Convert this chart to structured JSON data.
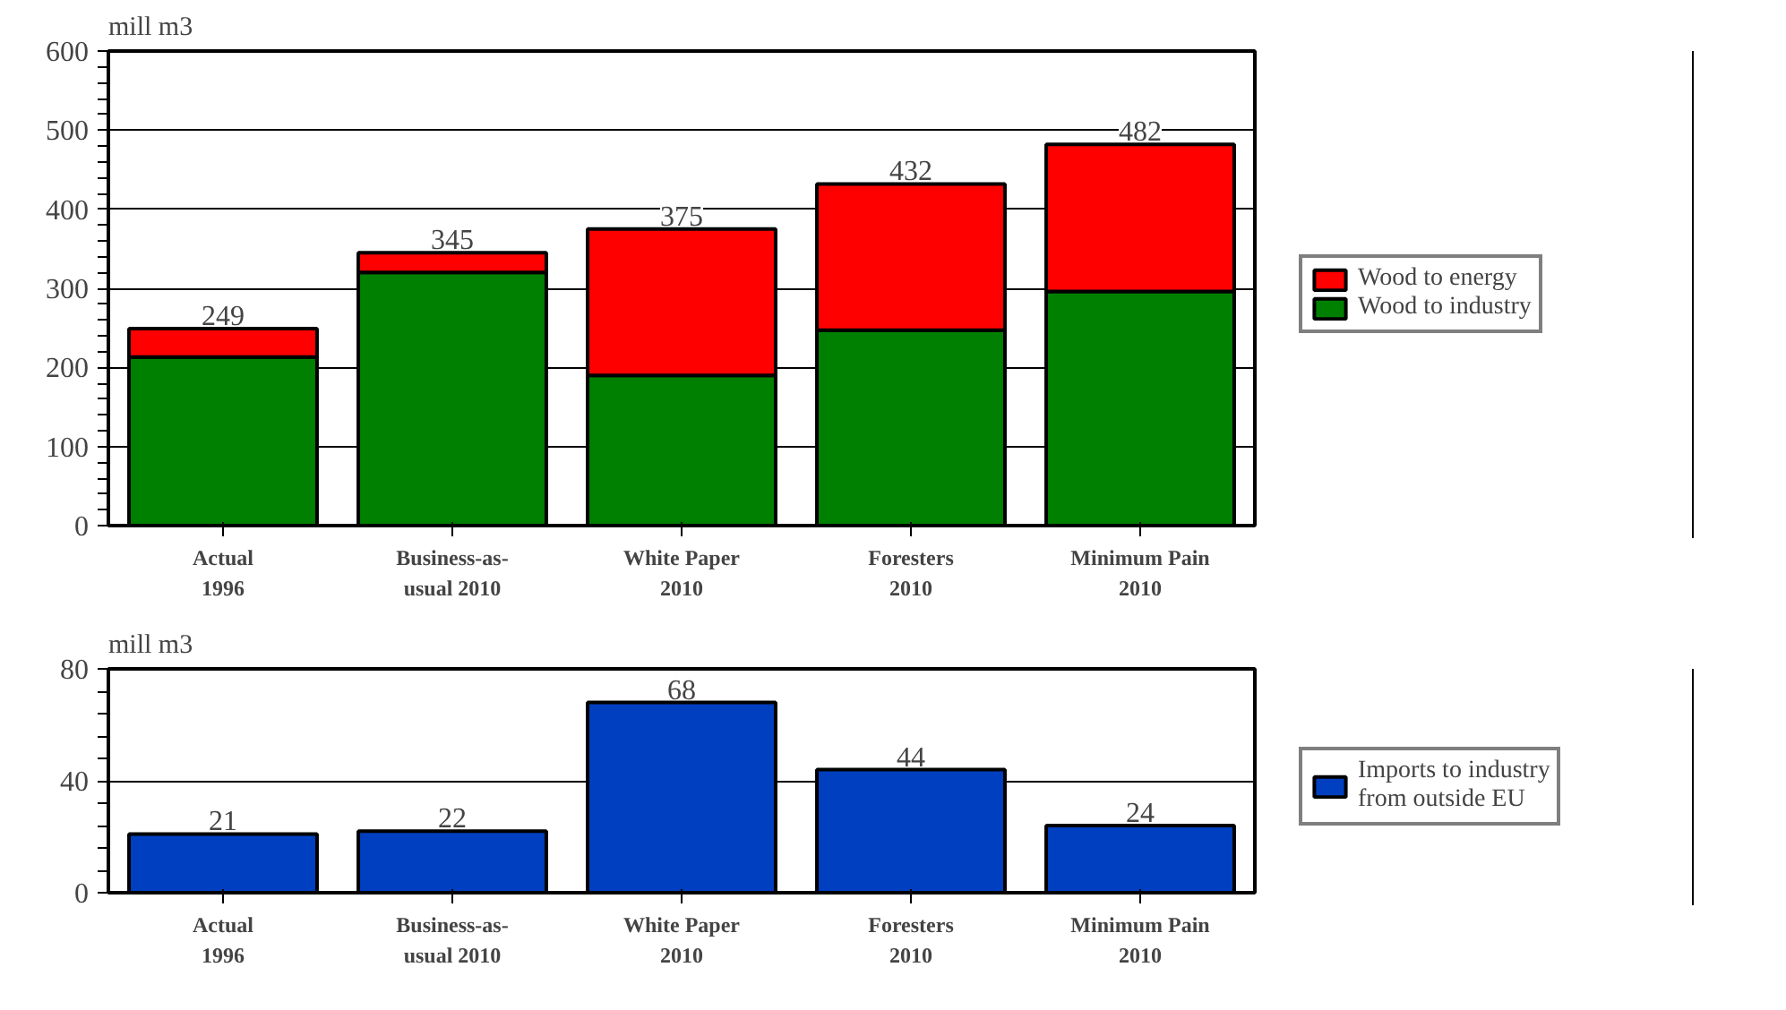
{
  "chart_data": [
    {
      "type": "bar",
      "stacked": true,
      "ylabel": "mill m3",
      "categories": [
        "Actual\n1996",
        "Business-as-\nusual 2010",
        "White Paper\n2010",
        "Foresters\n2010",
        "Minimum Pain\n2010"
      ],
      "series": [
        {
          "name": "Wood to industry",
          "color": "#008000",
          "values": [
            213,
            320,
            190,
            247,
            296
          ]
        },
        {
          "name": "Wood to energy",
          "color": "#ff0000",
          "values": [
            36,
            25,
            185,
            185,
            186
          ]
        }
      ],
      "totals": [
        "249",
        "345",
        "375",
        "432",
        "482"
      ],
      "ylim": [
        0,
        600
      ],
      "yticks": [
        0,
        100,
        200,
        300,
        400,
        500,
        600
      ],
      "grid": "y",
      "legend": "right"
    },
    {
      "type": "bar",
      "ylabel": "mill m3",
      "categories": [
        "Actual\n1996",
        "Business-as-\nusual 2010",
        "White Paper\n2010",
        "Foresters\n2010",
        "Minimum Pain\n2010"
      ],
      "series": [
        {
          "name": "Imports to industry\nfrom outside EU",
          "color": "#0040c0",
          "values": [
            21,
            22,
            68,
            44,
            24
          ]
        }
      ],
      "data_labels": true,
      "ylim": [
        0,
        80
      ],
      "yticks": [
        0,
        40,
        80
      ],
      "grid": "y",
      "legend": "right"
    }
  ]
}
